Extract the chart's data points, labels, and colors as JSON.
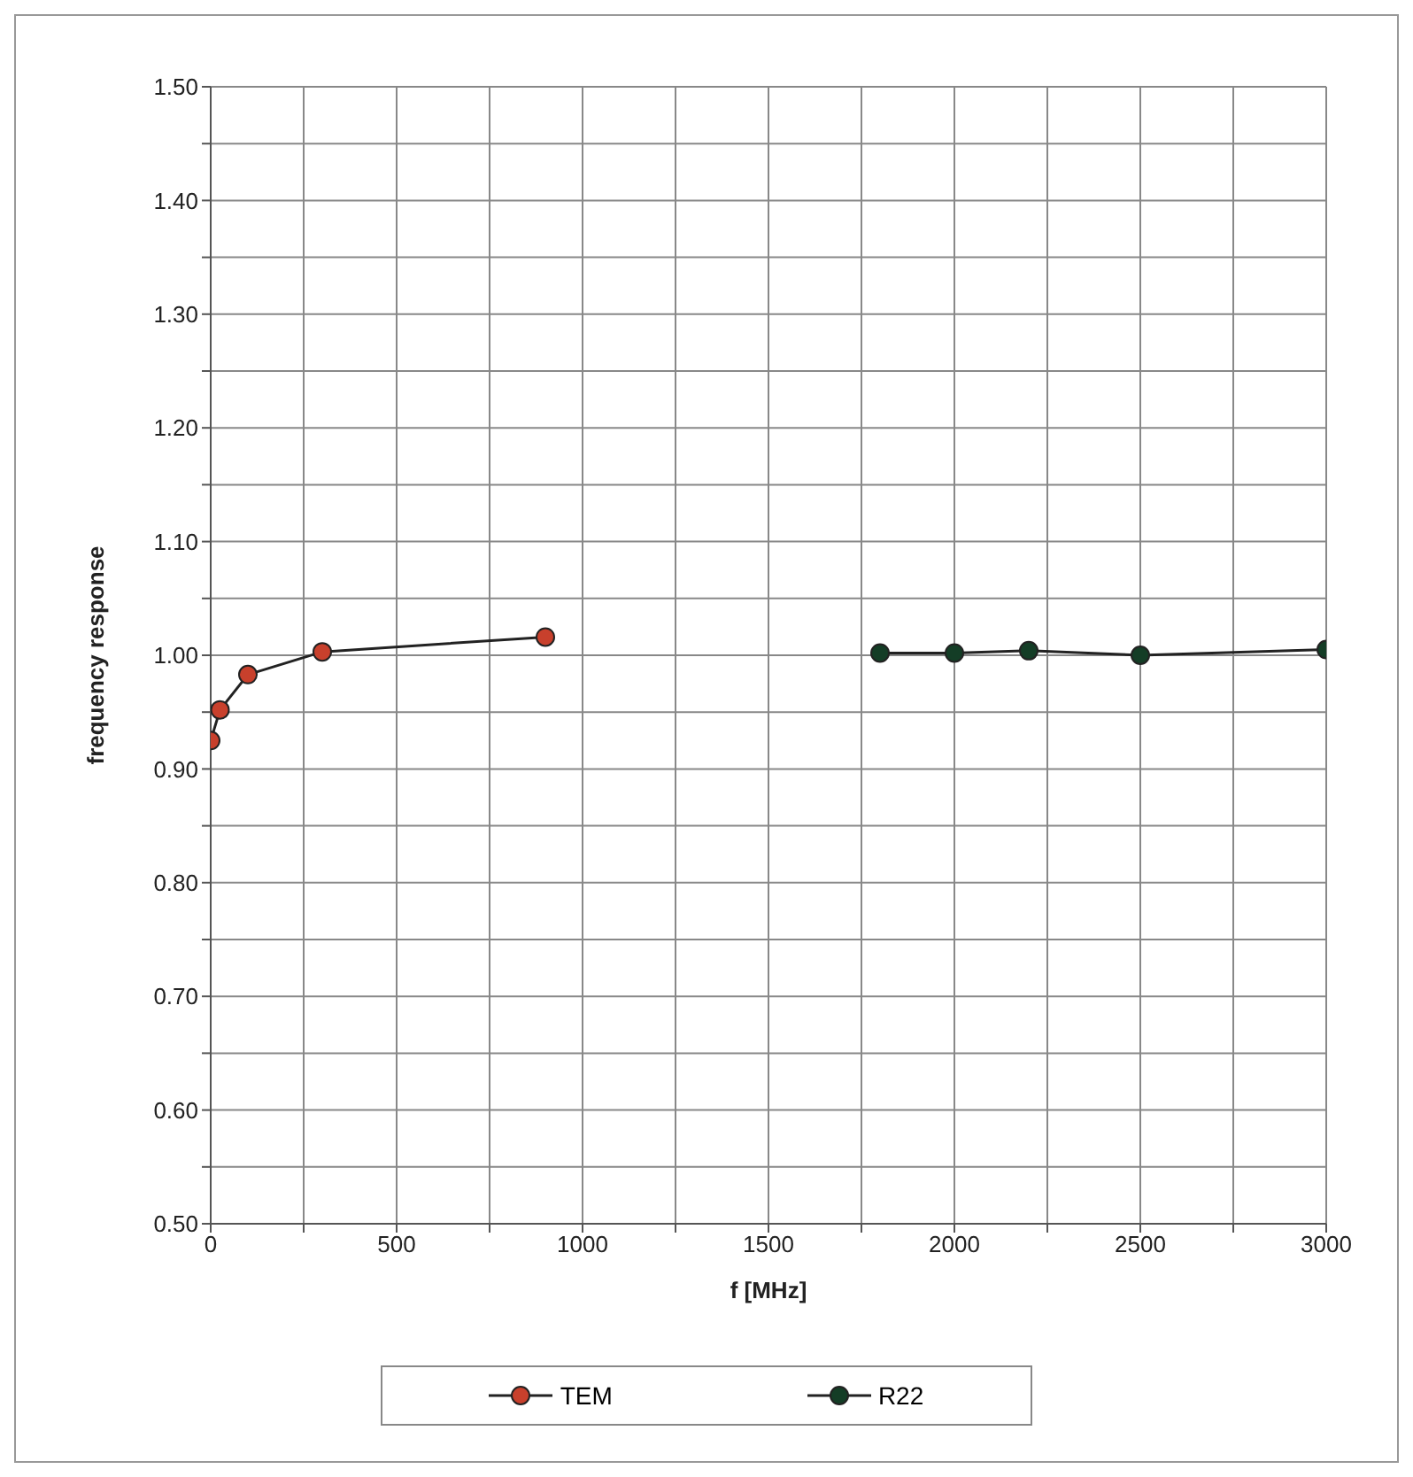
{
  "chart_data": {
    "type": "line",
    "xlabel": "f [MHz]",
    "ylabel": "frequency response",
    "xlim": [
      0,
      3000
    ],
    "xticks": [
      0,
      {
        "value": 250,
        "label": null
      },
      500,
      {
        "value": 750,
        "label": null
      },
      1000,
      {
        "value": 1250,
        "label": null
      },
      1500,
      {
        "value": 1750,
        "label": null
      },
      2000,
      {
        "value": 2250,
        "label": null
      },
      2500,
      {
        "value": 2750,
        "label": null
      },
      3000
    ],
    "ylim": [
      0.5,
      1.5
    ],
    "yticks": [
      {
        "value": 0.5,
        "label": "0.50"
      },
      {
        "value": 0.55,
        "label": null
      },
      {
        "value": 0.6,
        "label": "0.60"
      },
      {
        "value": 0.65,
        "label": null
      },
      {
        "value": 0.7,
        "label": "0.70"
      },
      {
        "value": 0.75,
        "label": null
      },
      {
        "value": 0.8,
        "label": "0.80"
      },
      {
        "value": 0.85,
        "label": null
      },
      {
        "value": 0.9,
        "label": "0.90"
      },
      {
        "value": 0.95,
        "label": null
      },
      {
        "value": 1.0,
        "label": "1.00"
      },
      {
        "value": 1.05,
        "label": null
      },
      {
        "value": 1.1,
        "label": "1.10"
      },
      {
        "value": 1.15,
        "label": null
      },
      {
        "value": 1.2,
        "label": "1.20"
      },
      {
        "value": 1.25,
        "label": null
      },
      {
        "value": 1.3,
        "label": "1.30"
      },
      {
        "value": 1.35,
        "label": null
      },
      {
        "value": 1.4,
        "label": "1.40"
      },
      {
        "value": 1.45,
        "label": null
      },
      {
        "value": 1.5,
        "label": "1.50"
      }
    ],
    "grid": true,
    "legend": "bottom",
    "marker": "circle",
    "line_style": "solid",
    "series": [
      {
        "name": "TEM",
        "color": "#c8402c",
        "x": [
          0,
          25,
          100,
          300,
          900
        ],
        "values": [
          0.925,
          0.952,
          0.983,
          1.003,
          1.016
        ]
      },
      {
        "name": "R22",
        "color": "#143d26",
        "x": [
          1800,
          2000,
          2200,
          2500,
          3000
        ],
        "values": [
          1.002,
          1.002,
          1.004,
          1.0,
          1.005
        ]
      }
    ]
  }
}
